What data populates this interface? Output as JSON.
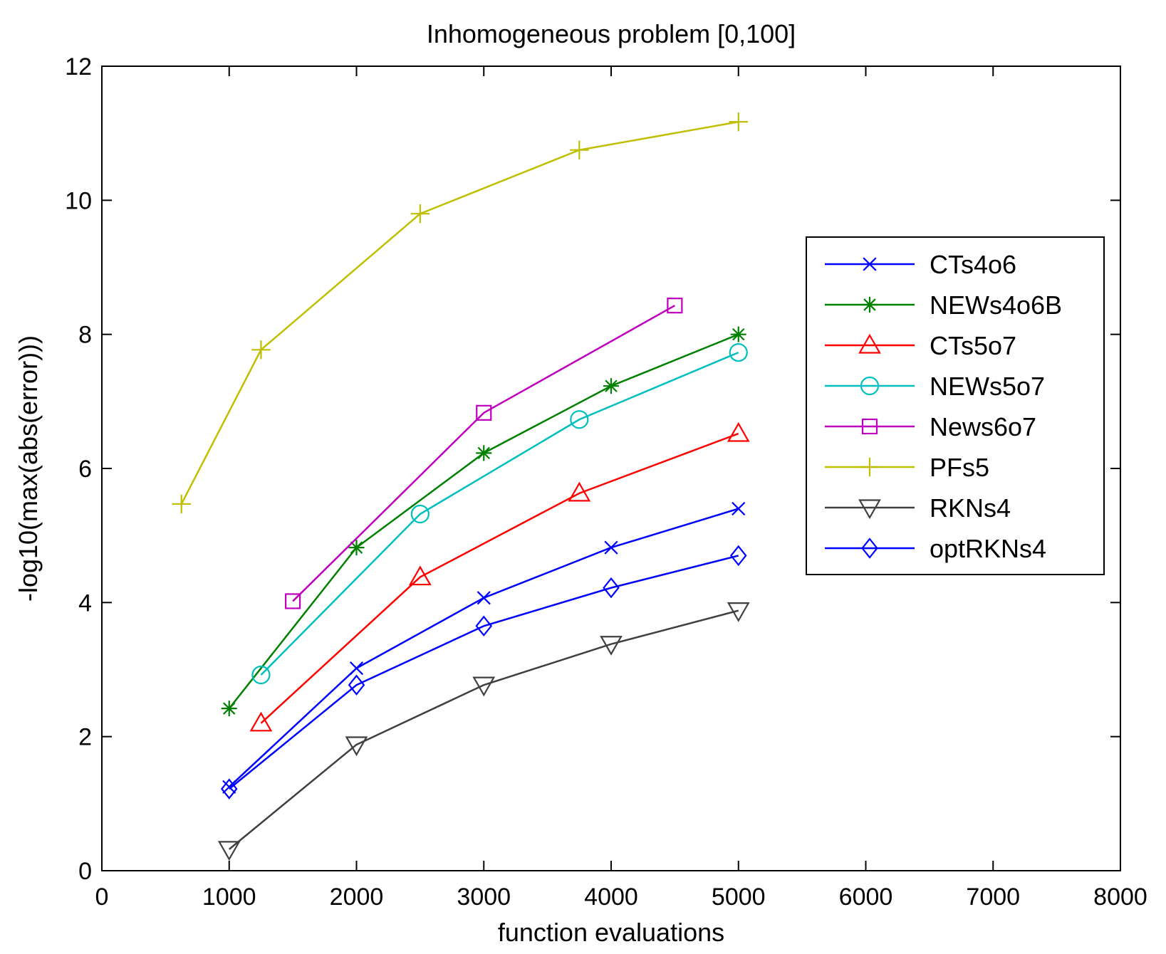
{
  "chart_data": {
    "type": "line",
    "title": "Inhomogeneous problem [0,100]",
    "xlabel": "function evaluations",
    "ylabel": "-log10(max(abs(error)))",
    "xlim": [
      0,
      8000
    ],
    "ylim": [
      0,
      12
    ],
    "xticks": [
      0,
      1000,
      2000,
      3000,
      4000,
      5000,
      6000,
      7000,
      8000
    ],
    "yticks": [
      0,
      2,
      4,
      6,
      8,
      10,
      12
    ],
    "grid": false,
    "legend_position": "right",
    "series": [
      {
        "name": "CTs4o6",
        "color": "#0000ff",
        "marker": "x",
        "x": [
          1000,
          2000,
          3000,
          4000,
          5000
        ],
        "y": [
          1.25,
          3.02,
          4.07,
          4.82,
          5.4
        ]
      },
      {
        "name": "NEWs4o6B",
        "color": "#008000",
        "marker": "asterisk",
        "x": [
          1000,
          2000,
          3000,
          4000,
          5000
        ],
        "y": [
          2.42,
          4.82,
          6.23,
          7.23,
          8.0
        ]
      },
      {
        "name": "CTs5o7",
        "color": "#ff0000",
        "marker": "triangle-up",
        "x": [
          1250,
          2500,
          3750,
          5000
        ],
        "y": [
          2.2,
          4.38,
          5.63,
          6.52
        ]
      },
      {
        "name": "NEWs5o7",
        "color": "#00bfbf",
        "marker": "circle",
        "x": [
          1250,
          2500,
          3750,
          5000
        ],
        "y": [
          2.92,
          5.32,
          6.73,
          7.73
        ]
      },
      {
        "name": "News6o7",
        "color": "#bf00bf",
        "marker": "square",
        "x": [
          1500,
          3000,
          4500
        ],
        "y": [
          4.02,
          6.83,
          8.43
        ]
      },
      {
        "name": "PFs5",
        "color": "#bfbf00",
        "marker": "plus",
        "x": [
          625,
          1250,
          2500,
          3750,
          5000
        ],
        "y": [
          5.47,
          7.77,
          9.8,
          10.75,
          11.17
        ]
      },
      {
        "name": "RKNs4",
        "color": "#404040",
        "marker": "triangle-down",
        "x": [
          1000,
          2000,
          3000,
          4000,
          5000
        ],
        "y": [
          0.32,
          1.88,
          2.77,
          3.38,
          3.88
        ]
      },
      {
        "name": "optRKNs4",
        "color": "#0000ff",
        "marker": "diamond",
        "x": [
          1000,
          2000,
          3000,
          4000,
          5000
        ],
        "y": [
          1.22,
          2.77,
          3.65,
          4.22,
          4.7
        ]
      }
    ]
  }
}
